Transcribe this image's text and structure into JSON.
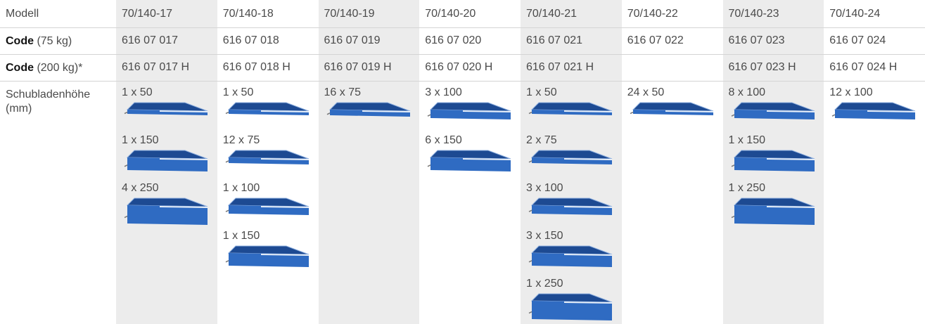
{
  "table": {
    "row_labels": [
      {
        "text": "Modell"
      },
      {
        "bold": "Code",
        "text": "(75 kg)"
      },
      {
        "bold": "Code",
        "text": "(200 kg)*"
      },
      {
        "text": "Schubladenhöhe (mm)"
      }
    ],
    "columns": [
      {
        "model": "70/140-17",
        "code_75": "616 07 017",
        "code_200": "616 07 017 H",
        "shaded": true,
        "drawers": [
          "1 x 50",
          "1 x 150",
          "4 x 250"
        ]
      },
      {
        "model": "70/140-18",
        "code_75": "616 07 018",
        "code_200": "616 07 018 H",
        "shaded": false,
        "drawers": [
          "1 x 50",
          "12 x 75",
          "1 x 100",
          "1 x 150"
        ]
      },
      {
        "model": "70/140-19",
        "code_75": "616 07 019",
        "code_200": "616 07 019 H",
        "shaded": true,
        "drawers": [
          "16 x 75"
        ]
      },
      {
        "model": "70/140-20",
        "code_75": "616 07 020",
        "code_200": "616 07 020 H",
        "shaded": false,
        "drawers": [
          "3 x 100",
          "6 x 150"
        ]
      },
      {
        "model": "70/140-21",
        "code_75": "616 07 021",
        "code_200": "616 07 021 H",
        "shaded": true,
        "drawers": [
          "1 x 50",
          "2 x 75",
          "3 x 100",
          "3 x 150",
          "1 x 250"
        ]
      },
      {
        "model": "70/140-22",
        "code_75": "616 07 022",
        "shaded": false,
        "drawers": [
          "24 x 50"
        ]
      },
      {
        "model": "70/140-23",
        "code_75": "616 07 023",
        "code_200": "616 07 023 H",
        "shaded": true,
        "drawers": [
          "8 x 100",
          "1 x 150",
          "1 x 250"
        ]
      },
      {
        "model": "70/140-24",
        "code_75": "616 07 024",
        "code_200": "616 07 024 H",
        "shaded": false,
        "drawers": [
          "12 x 100"
        ]
      }
    ]
  }
}
